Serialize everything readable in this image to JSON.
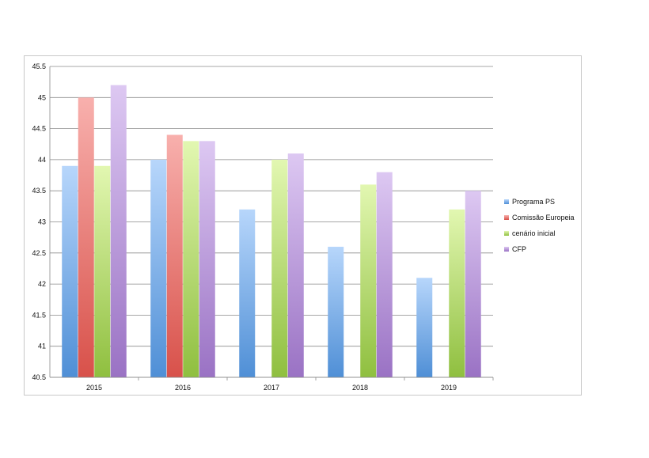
{
  "chart_data": {
    "type": "bar",
    "title": "",
    "xlabel": "",
    "ylabel": "",
    "categories": [
      "2015",
      "2016",
      "2017",
      "2018",
      "2019"
    ],
    "ylim": [
      40.5,
      45.5
    ],
    "yticks": [
      40.5,
      41,
      41.5,
      42,
      42.5,
      43,
      43.5,
      44,
      44.5,
      45,
      45.5
    ],
    "ytick_labels": [
      "40.5",
      "41",
      "41.5",
      "42",
      "42.5",
      "43",
      "43.5",
      "44",
      "44.5",
      "45",
      "45.5"
    ],
    "grid": true,
    "legend_position": "right",
    "series": [
      {
        "name": "Programa PS",
        "values": [
          43.9,
          44.0,
          43.2,
          42.6,
          42.1
        ],
        "color_top": "#b7d6fb",
        "color_bottom": "#4f8fd6"
      },
      {
        "name": "Comissão Europeia",
        "values": [
          45.0,
          44.4,
          null,
          null,
          null
        ],
        "color_top": "#f8b0ad",
        "color_bottom": "#d8514a"
      },
      {
        "name": "cenário inicial",
        "values": [
          43.9,
          44.3,
          44.0,
          43.6,
          43.2
        ],
        "color_top": "#e2f7b1",
        "color_bottom": "#8fbf3f"
      },
      {
        "name": "CFP",
        "values": [
          45.2,
          44.3,
          44.1,
          43.8,
          43.5
        ],
        "color_top": "#ddc8f2",
        "color_bottom": "#9a72c4"
      }
    ]
  }
}
